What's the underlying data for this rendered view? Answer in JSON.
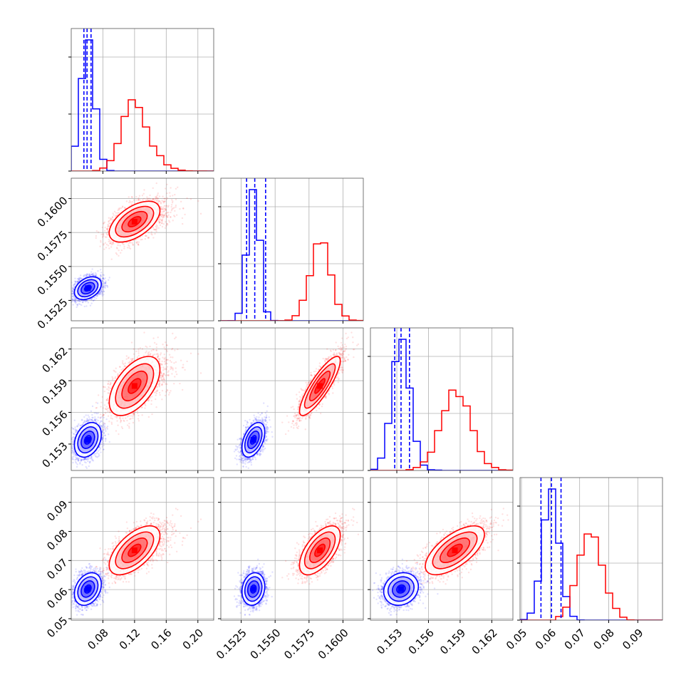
{
  "chart_data": {
    "type": "corner",
    "title": "",
    "parameters": [
      {
        "range": [
          0.04,
          0.22
        ],
        "ticks": [
          0.08,
          0.12,
          0.16,
          0.2
        ],
        "tick_labels": [
          "0.08",
          "0.12",
          "0.16",
          "0.20"
        ]
      },
      {
        "range": [
          0.151,
          0.1615
        ],
        "ticks": [
          0.1525,
          0.155,
          0.1575,
          0.16
        ],
        "tick_labels": [
          "0.1525",
          "0.1550",
          "0.1575",
          "0.1600"
        ]
      },
      {
        "range": [
          0.1505,
          0.164
        ],
        "ticks": [
          0.153,
          0.156,
          0.159,
          0.162
        ],
        "tick_labels": [
          "0.153",
          "0.156",
          "0.159",
          "0.162"
        ]
      },
      {
        "range": [
          0.0495,
          0.0985
        ],
        "ticks": [
          0.05,
          0.06,
          0.07,
          0.08,
          0.09
        ],
        "tick_labels": [
          "0.05",
          "0.06",
          "0.07",
          "0.08",
          "0.09"
        ]
      }
    ],
    "grid": true,
    "series": [
      {
        "color": "#0000ff",
        "means": [
          0.061,
          0.1534,
          0.1534,
          0.0602
        ],
        "stds": [
          0.0085,
          0.00042,
          0.00082,
          0.0028
        ],
        "correlations": [
          [
            1,
            0.35,
            0.3,
            0.3
          ],
          [
            0.35,
            1,
            0.45,
            0.15
          ],
          [
            0.3,
            0.45,
            1,
            0.15
          ],
          [
            0.3,
            0.15,
            0.15,
            1
          ]
        ],
        "quantiles": [
          [
            0.056,
            0.06,
            0.065
          ],
          [
            0.1529,
            0.1535,
            0.1543
          ],
          [
            0.1528,
            0.1534,
            0.1542
          ],
          [
            0.0567,
            0.0603,
            0.0636
          ]
        ]
      },
      {
        "color": "#ff0000",
        "means": [
          0.12,
          0.1583,
          0.1585,
          0.0735
        ],
        "stds": [
          0.016,
          0.00075,
          0.0014,
          0.0042
        ],
        "correlations": [
          [
            1,
            0.55,
            0.55,
            0.6
          ],
          [
            0.55,
            1,
            0.85,
            0.6
          ],
          [
            0.55,
            0.85,
            1,
            0.65
          ],
          [
            0.6,
            0.6,
            0.65,
            1
          ]
        ],
        "quantiles": []
      }
    ]
  }
}
